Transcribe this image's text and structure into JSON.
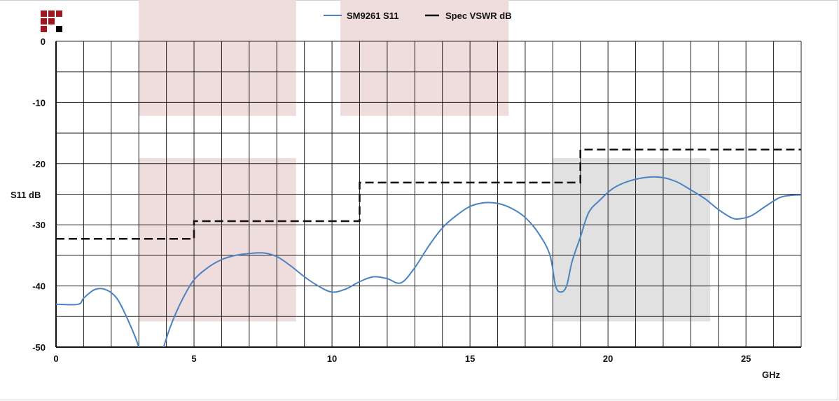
{
  "logo": {
    "name": "company-logo",
    "colors": [
      "#a0161e",
      "#000000"
    ]
  },
  "chart_data": {
    "type": "line",
    "title": "",
    "xlabel": "GHz",
    "ylabel": "S11 dB",
    "xlim": [
      0,
      27
    ],
    "ylim": [
      -50,
      0
    ],
    "x_ticks": [
      0,
      5,
      10,
      15,
      20,
      25
    ],
    "y_ticks": [
      0,
      -10,
      -20,
      -30,
      -40,
      -50
    ],
    "grid": true,
    "legend_position": "top-center",
    "series": [
      {
        "name": "SM9261 S11",
        "color": "#4a82c3",
        "style": "solid",
        "points": [
          [
            0,
            -43
          ],
          [
            0.8,
            -43
          ],
          [
            1.0,
            -42
          ],
          [
            1.4,
            -40.6
          ],
          [
            1.8,
            -40.6
          ],
          [
            2.2,
            -42
          ],
          [
            2.6,
            -45.5
          ],
          [
            3.0,
            -50
          ],
          [
            3.05,
            -52
          ],
          [
            3.8,
            -52
          ],
          [
            3.9,
            -50
          ],
          [
            4.2,
            -46
          ],
          [
            4.6,
            -42
          ],
          [
            5.0,
            -39
          ],
          [
            5.5,
            -37
          ],
          [
            6.0,
            -35.7
          ],
          [
            6.5,
            -35
          ],
          [
            7.0,
            -34.7
          ],
          [
            7.5,
            -34.6
          ],
          [
            8.0,
            -35.2
          ],
          [
            8.5,
            -36.7
          ],
          [
            9.0,
            -38.5
          ],
          [
            9.5,
            -40
          ],
          [
            10.0,
            -41
          ],
          [
            10.5,
            -40.5
          ],
          [
            11.0,
            -39.3
          ],
          [
            11.5,
            -38.5
          ],
          [
            12.0,
            -38.8
          ],
          [
            12.5,
            -39.5
          ],
          [
            13.0,
            -37
          ],
          [
            13.5,
            -33.5
          ],
          [
            14.0,
            -30.5
          ],
          [
            14.5,
            -28.5
          ],
          [
            15.0,
            -27
          ],
          [
            15.5,
            -26.4
          ],
          [
            16.0,
            -26.5
          ],
          [
            16.5,
            -27.3
          ],
          [
            17.0,
            -28.8
          ],
          [
            17.5,
            -31.5
          ],
          [
            17.9,
            -35
          ],
          [
            18.1,
            -40
          ],
          [
            18.3,
            -41
          ],
          [
            18.5,
            -40
          ],
          [
            18.7,
            -36
          ],
          [
            19.0,
            -32
          ],
          [
            19.3,
            -28
          ],
          [
            19.7,
            -26
          ],
          [
            20.2,
            -24
          ],
          [
            20.8,
            -22.8
          ],
          [
            21.5,
            -22.2
          ],
          [
            22.0,
            -22.3
          ],
          [
            22.5,
            -23
          ],
          [
            23.0,
            -24.3
          ],
          [
            23.5,
            -25.7
          ],
          [
            24.0,
            -27.5
          ],
          [
            24.5,
            -28.9
          ],
          [
            24.8,
            -29
          ],
          [
            25.2,
            -28.5
          ],
          [
            25.7,
            -27
          ],
          [
            26.2,
            -25.6
          ],
          [
            26.6,
            -25.2
          ],
          [
            27.0,
            -25.1
          ]
        ]
      },
      {
        "name": "Spec VSWR dB",
        "color": "#111111",
        "style": "dashed",
        "points": [
          [
            0,
            -32.3
          ],
          [
            5.0,
            -32.3
          ],
          [
            5.0,
            -29.4
          ],
          [
            11.0,
            -29.4
          ],
          [
            11.0,
            -23.1
          ],
          [
            19.0,
            -23.1
          ],
          [
            19.0,
            -17.7
          ],
          [
            27.0,
            -17.7
          ]
        ]
      }
    ],
    "shaded_regions": [
      {
        "x": [
          3,
          8.7
        ],
        "y": [
          -12.2,
          0
        ],
        "color": "#efdcdc"
      },
      {
        "x": [
          10.3,
          16.4
        ],
        "y": [
          -12.2,
          0
        ],
        "color": "#efdcdc"
      },
      {
        "x": [
          3,
          8.7
        ],
        "y": [
          -45.8,
          -19.1
        ],
        "color": "#efdcdc"
      },
      {
        "x": [
          18,
          23.7
        ],
        "y": [
          -45.8,
          -19.1
        ],
        "color": "#e1e1e1"
      }
    ]
  }
}
